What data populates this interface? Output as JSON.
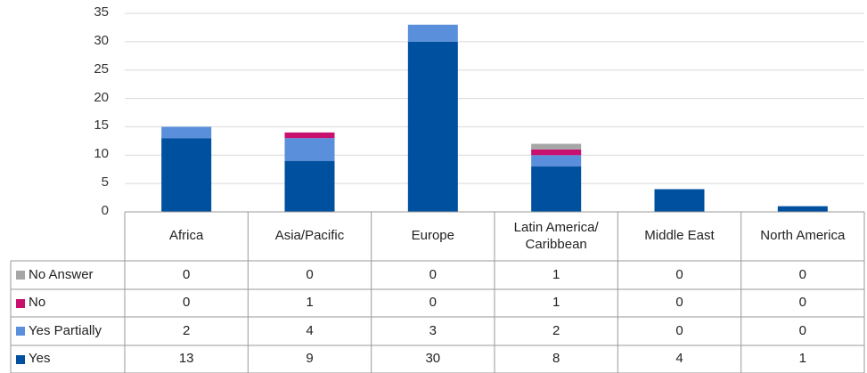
{
  "chart_data": {
    "type": "stacked_bar",
    "categories": [
      "Africa",
      "Asia/Pacific",
      "Europe",
      "Latin America/ Caribbean",
      "Middle East",
      "North America"
    ],
    "series": [
      {
        "name": "No Answer",
        "color": "#a6a6a6",
        "values": [
          0,
          0,
          0,
          1,
          0,
          0
        ]
      },
      {
        "name": "No",
        "color": "#c8106e",
        "values": [
          0,
          1,
          0,
          1,
          0,
          0
        ]
      },
      {
        "name": "Yes Partially",
        "color": "#5a8fdb",
        "values": [
          2,
          4,
          3,
          2,
          0,
          0
        ]
      },
      {
        "name": "Yes",
        "color": "#0050a0",
        "values": [
          13,
          9,
          30,
          8,
          4,
          1
        ]
      }
    ],
    "ylim": [
      0,
      35
    ],
    "yticks": [
      0,
      5,
      10,
      15,
      20,
      25,
      30,
      35
    ],
    "grid": true
  }
}
